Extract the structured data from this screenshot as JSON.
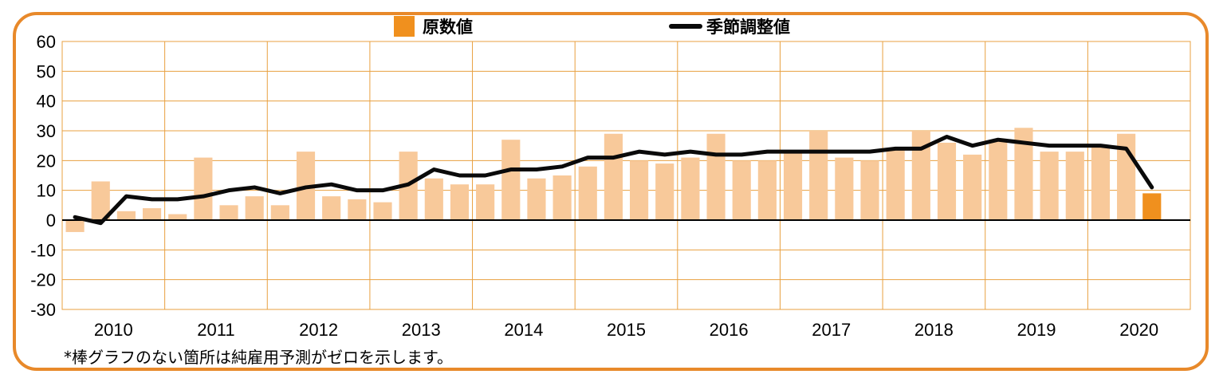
{
  "chart_data": {
    "type": "bar",
    "title": "",
    "xlabel": "",
    "ylabel": "",
    "ylim": [
      -30,
      60
    ],
    "yticks": [
      -30,
      -20,
      -10,
      0,
      10,
      20,
      30,
      40,
      50,
      60
    ],
    "grid": true,
    "legend_position": "top-center",
    "years": [
      "2010",
      "2011",
      "2012",
      "2013",
      "2014",
      "2015",
      "2016",
      "2017",
      "2018",
      "2019",
      "2020"
    ],
    "quarters_per_year": 4,
    "series": [
      {
        "name": "原数値",
        "type": "bar",
        "values": [
          -4,
          13,
          3,
          4,
          2,
          21,
          5,
          8,
          5,
          23,
          8,
          7,
          6,
          23,
          14,
          12,
          12,
          27,
          14,
          15,
          18,
          29,
          20,
          19,
          21,
          29,
          20,
          20,
          23,
          30,
          21,
          20,
          24,
          30,
          26,
          22,
          27,
          31,
          23,
          23,
          25,
          29,
          9
        ]
      },
      {
        "name": "季節調整値",
        "type": "line",
        "values": [
          1,
          -1,
          8,
          7,
          7,
          8,
          10,
          11,
          9,
          11,
          12,
          10,
          10,
          12,
          17,
          15,
          15,
          17,
          17,
          18,
          21,
          21,
          23,
          22,
          23,
          22,
          22,
          23,
          23,
          23,
          23,
          23,
          24,
          24,
          28,
          25,
          27,
          26,
          25,
          25,
          25,
          24,
          11
        ]
      }
    ],
    "colors": {
      "bar": "#f8c99a",
      "bar_latest": "#f0901e",
      "line": "#0a0a0a",
      "grid": "#e8a040",
      "frame": "#e8892a",
      "legend_bar": "#f0901e"
    },
    "note": "*棒グラフのない箇所は純雇用予測がゼロを示します。"
  }
}
